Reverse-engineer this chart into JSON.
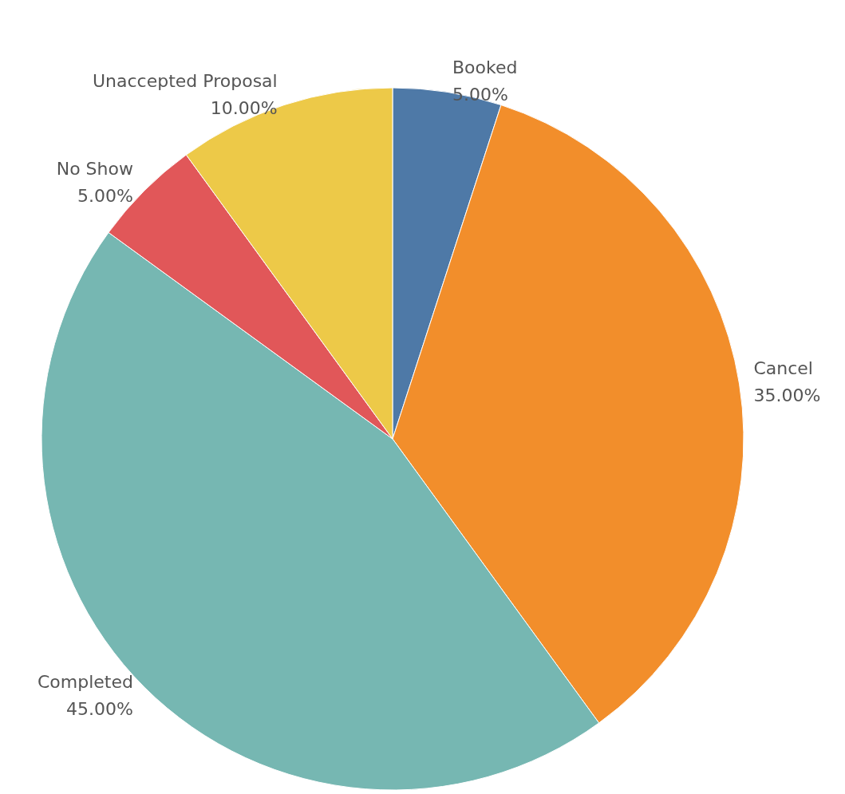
{
  "chart_data": {
    "type": "pie",
    "categories": [
      "Booked",
      "Cancel",
      "Completed",
      "No Show",
      "Unaccepted Proposal"
    ],
    "values": [
      5,
      35,
      45,
      5,
      10
    ],
    "colors": [
      "#4e79a7",
      "#f28e2b",
      "#76b7b2",
      "#e15759",
      "#edc948"
    ],
    "value_labels": [
      "5.00%",
      "35.00%",
      "45.00%",
      "5.00%",
      "10.00%"
    ]
  }
}
